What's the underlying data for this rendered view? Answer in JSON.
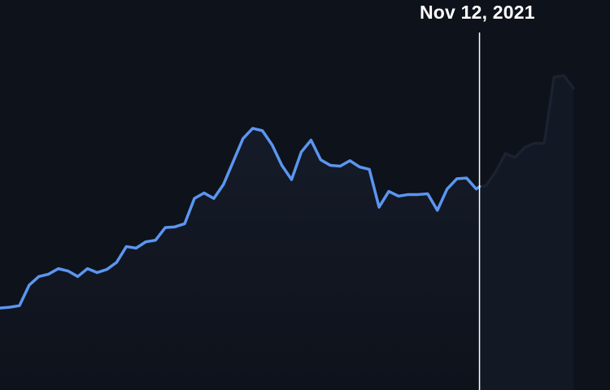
{
  "hover": {
    "date_label": "Nov 12, 2021"
  },
  "colors": {
    "background": "#0e121b",
    "line": "#5b96f0",
    "line_dimmed": "#1b2230",
    "area_fill": "#151b28",
    "crosshair": "#ffffff"
  },
  "chart_data": {
    "type": "area",
    "title": "",
    "xlabel": "",
    "ylabel": "",
    "grid": false,
    "legend": "none",
    "ylim": [
      0,
      100
    ],
    "hover_index": 49,
    "series": [
      {
        "values": [
          20.8,
          21.0,
          21.4,
          26.6,
          28.8,
          29.4,
          30.8,
          30.2,
          28.8,
          30.8,
          29.8,
          30.6,
          32.4,
          36.4,
          36.0,
          37.6,
          38.0,
          41.2,
          41.4,
          42.2,
          48.6,
          50.0,
          48.6,
          52.2,
          58.0,
          63.8,
          66.4,
          65.8,
          62.2,
          57.0,
          53.4,
          60.4,
          63.4,
          58.4,
          57.0,
          56.8,
          58.2,
          56.6,
          56.0,
          46.4,
          50.4,
          49.2,
          49.6,
          49.6,
          49.8,
          45.6,
          51.0,
          53.6,
          53.8,
          51.0,
          51.8,
          55.4,
          60.0,
          59.0,
          61.6,
          62.6,
          62.6,
          79.4,
          79.8,
          76.6
        ]
      }
    ]
  }
}
